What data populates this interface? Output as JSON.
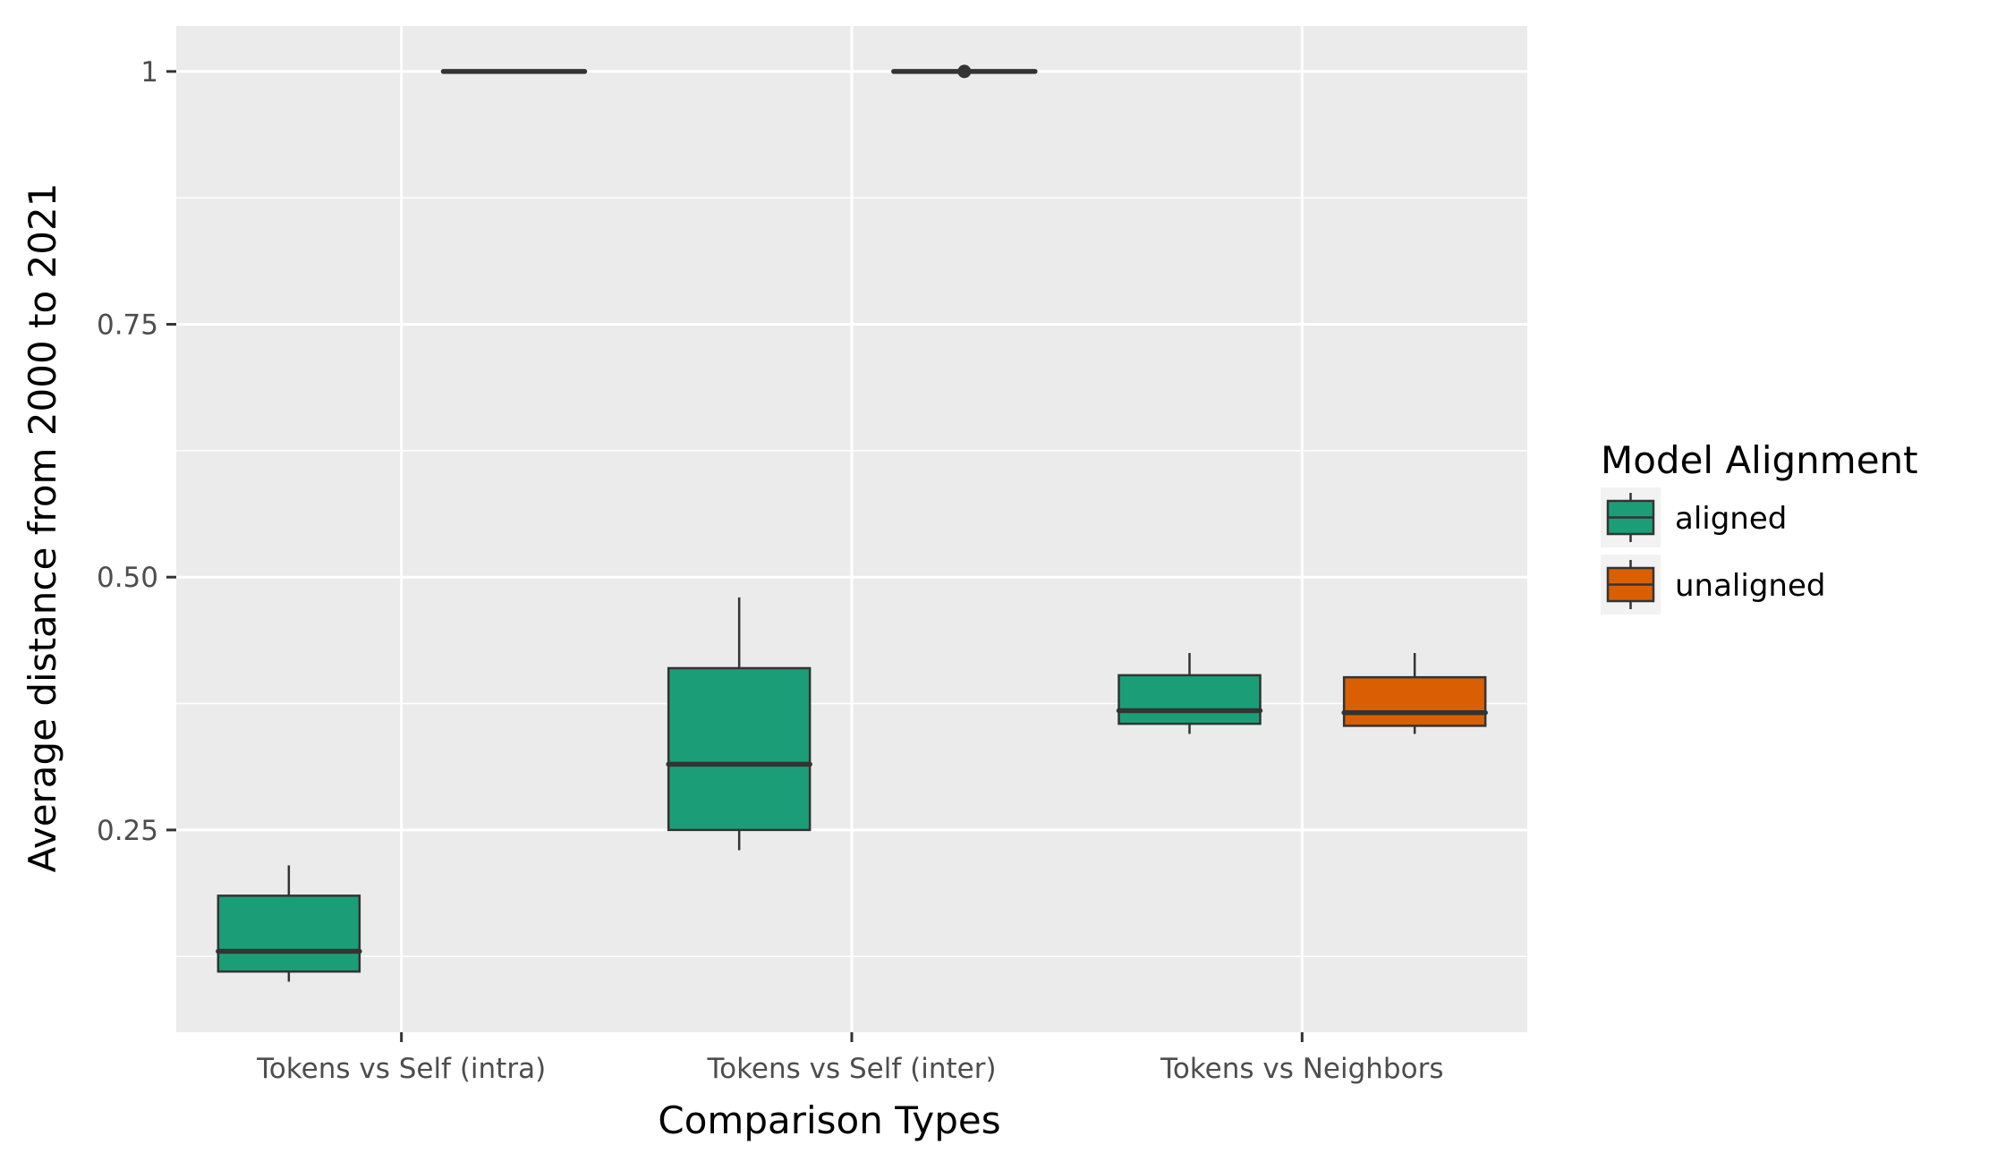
{
  "chart_data": {
    "type": "box",
    "title": "",
    "xlabel": "Comparison Types",
    "ylabel": "Average distance from 2000 to 2021",
    "categories": [
      "Tokens vs Self (intra)",
      "Tokens vs Self (inter)",
      "Tokens vs Neighbors"
    ],
    "ylim": [
      0.05,
      1.045
    ],
    "yticks": [
      {
        "value": 0.25,
        "label": "0.25"
      },
      {
        "value": 0.5,
        "label": "0.50"
      },
      {
        "value": 0.75,
        "label": "0.75"
      },
      {
        "value": 1.0,
        "label": "1"
      }
    ],
    "y_minor_gridlines": [
      0.125,
      0.375,
      0.625,
      0.875
    ],
    "grid": true,
    "legend": {
      "title": "Model Alignment",
      "position": "right"
    },
    "series": [
      {
        "name": "aligned",
        "color": "#1b9e77",
        "boxes": [
          {
            "category": "Tokens vs Self (intra)",
            "min": 0.1,
            "q1": 0.11,
            "median": 0.13,
            "q3": 0.185,
            "max": 0.215,
            "outliers": []
          },
          {
            "category": "Tokens vs Self (inter)",
            "min": 0.23,
            "q1": 0.25,
            "median": 0.315,
            "q3": 0.41,
            "max": 0.48,
            "outliers": []
          },
          {
            "category": "Tokens vs Neighbors",
            "min": 0.345,
            "q1": 0.355,
            "median": 0.368,
            "q3": 0.403,
            "max": 0.425,
            "outliers": []
          }
        ]
      },
      {
        "name": "unaligned",
        "color": "#d95f02",
        "boxes": [
          {
            "category": "Tokens vs Self (intra)",
            "min": 1.0,
            "q1": 1.0,
            "median": 1.0,
            "q3": 1.0,
            "max": 1.0,
            "outliers": []
          },
          {
            "category": "Tokens vs Self (inter)",
            "min": 1.0,
            "q1": 1.0,
            "median": 1.0,
            "q3": 1.0,
            "max": 1.0,
            "outliers": [
              1.0
            ]
          },
          {
            "category": "Tokens vs Neighbors",
            "min": 0.345,
            "q1": 0.353,
            "median": 0.366,
            "q3": 0.401,
            "max": 0.425,
            "outliers": []
          }
        ]
      }
    ]
  }
}
